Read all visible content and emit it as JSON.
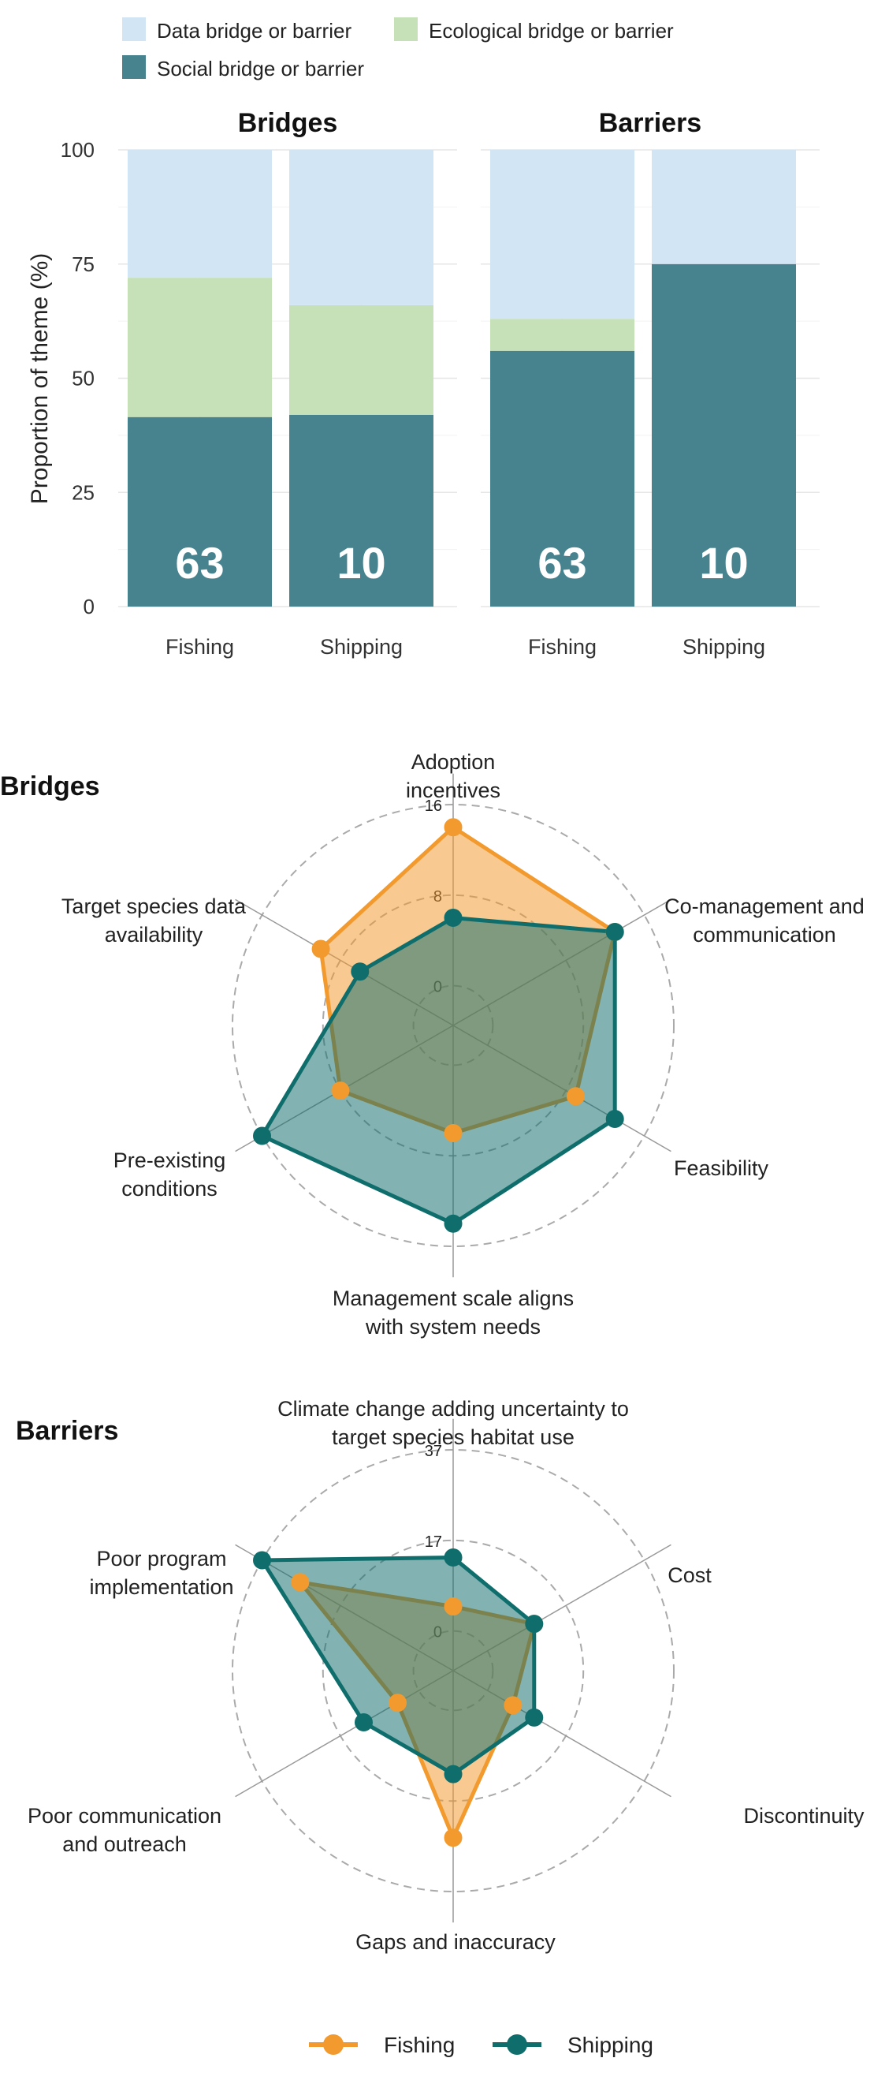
{
  "chart_data": [
    {
      "type": "bar",
      "stacked": true,
      "ylabel": "Proportion of theme (%)",
      "ylim": [
        0,
        100
      ],
      "yticks": [
        0,
        25,
        50,
        75,
        100
      ],
      "grid": true,
      "legend": {
        "position": "top-left",
        "entries": [
          "Data bridge or barrier",
          "Ecological bridge or barrier",
          "Social bridge or barrier"
        ]
      },
      "colors": {
        "Data bridge or barrier": "#d2e5f4",
        "Ecological bridge or barrier": "#c6e1b8",
        "Social bridge or barrier": "#47838f"
      },
      "panels": [
        {
          "title": "Bridges",
          "categories": [
            "Fishing",
            "Shipping"
          ],
          "series": [
            {
              "name": "Social bridge or barrier",
              "values": [
                41.5,
                42
              ]
            },
            {
              "name": "Ecological bridge or barrier",
              "values": [
                30.5,
                24
              ]
            },
            {
              "name": "Data bridge or barrier",
              "values": [
                28,
                34
              ]
            }
          ],
          "labels": [
            "63",
            "10"
          ]
        },
        {
          "title": "Barriers",
          "categories": [
            "Fishing",
            "Shipping"
          ],
          "series": [
            {
              "name": "Social bridge or barrier",
              "values": [
                56,
                75
              ]
            },
            {
              "name": "Ecological bridge or barrier",
              "values": [
                7,
                0
              ]
            },
            {
              "name": "Data bridge or barrier",
              "values": [
                37,
                25
              ]
            }
          ],
          "labels": [
            "63",
            "10"
          ]
        }
      ]
    },
    {
      "type": "radar",
      "title": "Bridges",
      "rmax": 16,
      "ticks": [
        "0",
        "8",
        "16"
      ],
      "axes": [
        [
          "Adoption",
          "incentives"
        ],
        [
          "Co-management and",
          "communication"
        ],
        [
          "Feasibility"
        ],
        [
          "Management scale aligns",
          "with system needs"
        ],
        [
          "Pre-existing",
          "conditions"
        ],
        [
          "Target species data",
          "availability"
        ]
      ],
      "series": [
        {
          "name": "Fishing",
          "values": [
            14,
            13,
            9,
            6,
            8,
            10
          ]
        },
        {
          "name": "Shipping",
          "values": [
            6,
            13,
            13,
            14,
            16,
            6
          ]
        }
      ]
    },
    {
      "type": "radar",
      "title": "Barriers",
      "rmax": 37,
      "ticks": [
        "0",
        "17",
        "37"
      ],
      "axes": [
        [
          "Climate change adding uncertainty to",
          "target species habitat use"
        ],
        [
          "Cost"
        ],
        [
          "Discontinuity"
        ],
        [
          "Gaps and inaccuracy"
        ],
        [
          "Poor communication",
          "and outreach"
        ],
        [
          "Poor program",
          "implementation"
        ]
      ],
      "series": [
        {
          "name": "Fishing",
          "values": [
            5,
            11,
            6,
            26,
            5,
            28
          ]
        },
        {
          "name": "Shipping",
          "values": [
            15,
            11,
            11,
            13,
            13,
            37
          ]
        }
      ]
    }
  ],
  "legend_bottom": [
    {
      "name": "Fishing",
      "color": "#f29a2e"
    },
    {
      "name": "Shipping",
      "color": "#0f6e6c"
    }
  ],
  "colors": {
    "fishing": "#f29a2e",
    "shipping": "#0f6e6c"
  }
}
